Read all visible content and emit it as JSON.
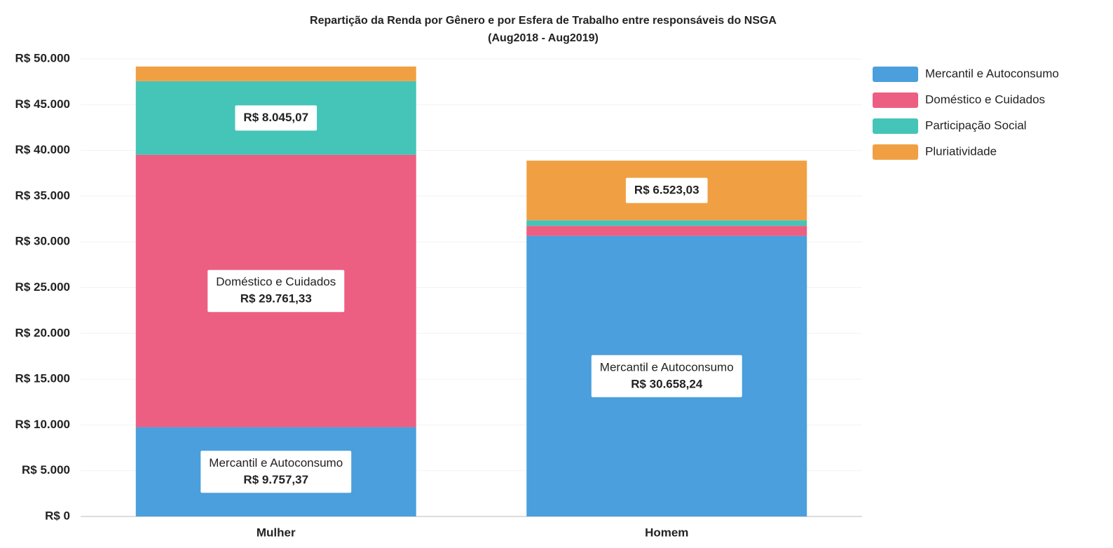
{
  "chart_data": {
    "type": "stacked_bar",
    "title": "Repartição da Renda por Gênero e por Esfera de Trabalho entre responsáveis do NSGA",
    "subtitle": "(Aug2018 - Aug2019)",
    "categories": [
      "Mulher",
      "Homem"
    ],
    "series": [
      {
        "name": "Mercantil e Autoconsumo",
        "color": "#4a9fdc",
        "values": [
          9757.37,
          30658.24
        ],
        "value_labels": [
          "R$ 9.757,37",
          "R$ 30.658,24"
        ],
        "show_name_in_label": [
          true,
          true
        ]
      },
      {
        "name": "Doméstico e Cuidados",
        "color": "#ec5f82",
        "values": [
          29761.33,
          1100
        ],
        "value_labels": [
          "R$ 29.761,33",
          null
        ],
        "show_name_in_label": [
          true,
          false
        ]
      },
      {
        "name": "Participação Social",
        "color": "#45c4b8",
        "values": [
          8045.07,
          600
        ],
        "value_labels": [
          "R$ 8.045,07",
          null
        ],
        "show_name_in_label": [
          false,
          false
        ]
      },
      {
        "name": "Pluriatividade",
        "color": "#f0a043",
        "values": [
          1600,
          6523.03
        ],
        "value_labels": [
          null,
          "R$ 6.523,03"
        ],
        "show_name_in_label": [
          false,
          false
        ]
      }
    ],
    "ylim": [
      0,
      50000
    ],
    "yticks": [
      {
        "value": 0,
        "label": "R$ 0"
      },
      {
        "value": 5000,
        "label": "R$ 5.000"
      },
      {
        "value": 10000,
        "label": "R$ 10.000"
      },
      {
        "value": 15000,
        "label": "R$ 15.000"
      },
      {
        "value": 20000,
        "label": "R$ 20.000"
      },
      {
        "value": 25000,
        "label": "R$ 25.000"
      },
      {
        "value": 30000,
        "label": "R$ 30.000"
      },
      {
        "value": 35000,
        "label": "R$ 35.000"
      },
      {
        "value": 40000,
        "label": "R$ 40.000"
      },
      {
        "value": 45000,
        "label": "R$ 45.000"
      },
      {
        "value": 50000,
        "label": "R$ 50.000"
      }
    ],
    "grid": true,
    "legend": "right"
  }
}
